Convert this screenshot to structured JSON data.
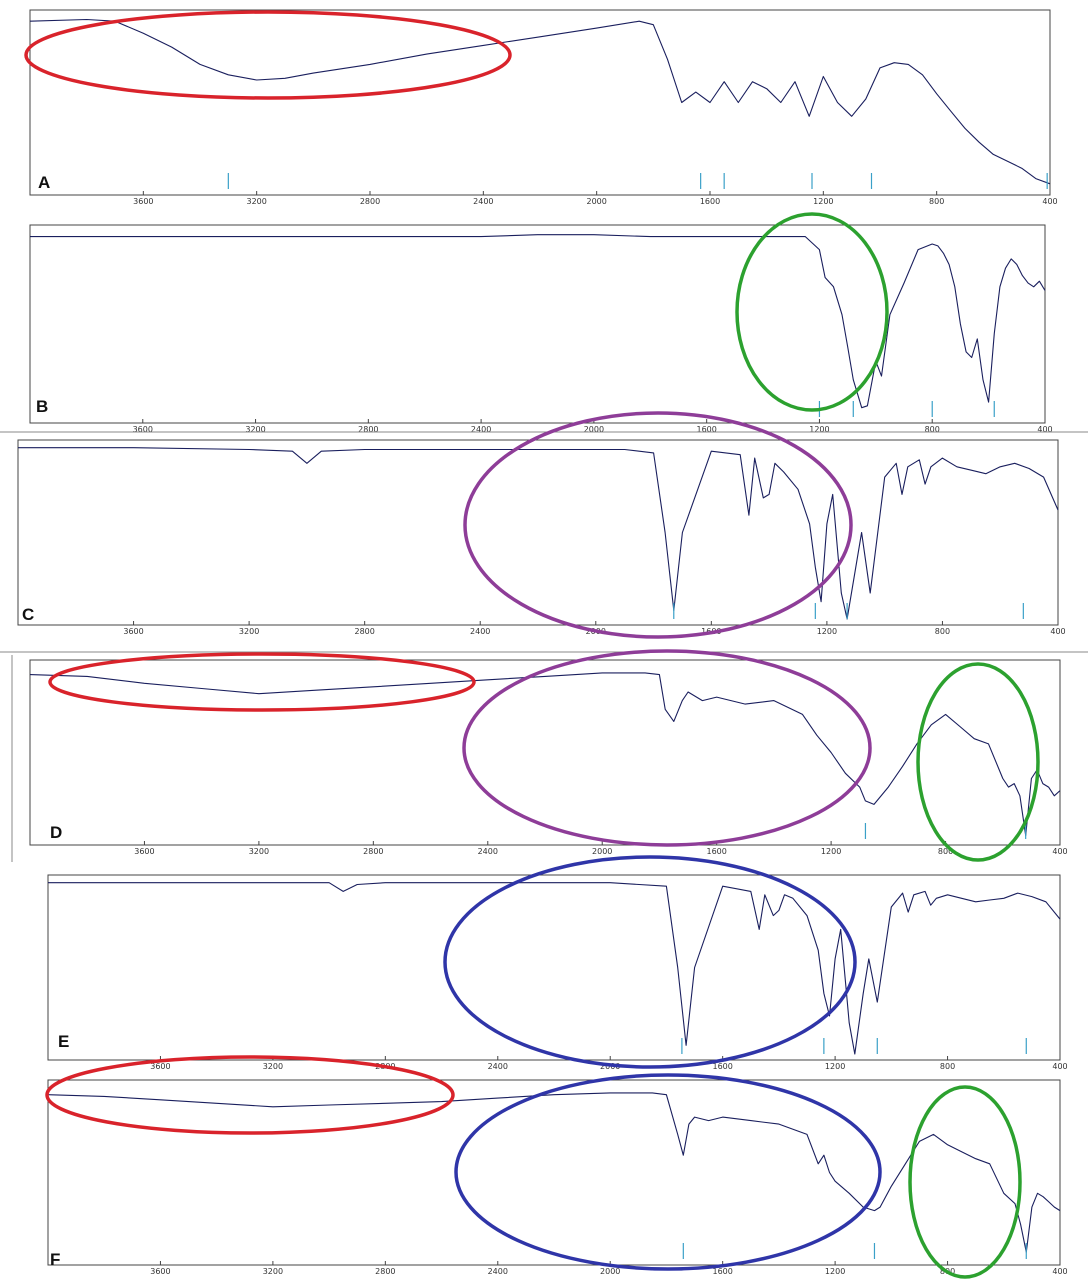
{
  "figure": {
    "panel_letters": [
      "A",
      "B",
      "C",
      "D",
      "E",
      "F"
    ],
    "highlight_colors": {
      "red": "#d9232b",
      "green": "#2ca12f",
      "purple": "#8e3d98",
      "blue": "#2f35a8"
    },
    "spectrum_color": "#1a1f5e"
  },
  "chart_data": [
    {
      "type": "line",
      "panel": "A",
      "xlabel": "",
      "ylabel": "",
      "xlim": [
        4000,
        400
      ],
      "x_reversed": true,
      "x_ticks": [
        3600,
        3200,
        2800,
        2400,
        2000,
        1600,
        1200,
        800,
        400
      ],
      "x": [
        4000,
        3800,
        3700,
        3600,
        3500,
        3400,
        3300,
        3200,
        3100,
        3000,
        2800,
        2600,
        2400,
        2200,
        2000,
        1850,
        1800,
        1750,
        1700,
        1650,
        1600,
        1550,
        1500,
        1450,
        1400,
        1350,
        1300,
        1250,
        1200,
        1150,
        1100,
        1050,
        1000,
        950,
        900,
        850,
        800,
        750,
        700,
        650,
        600,
        550,
        500,
        450,
        400
      ],
      "y": [
        0.97,
        0.98,
        0.97,
        0.9,
        0.82,
        0.72,
        0.66,
        0.63,
        0.64,
        0.67,
        0.72,
        0.78,
        0.83,
        0.88,
        0.93,
        0.97,
        0.95,
        0.75,
        0.5,
        0.56,
        0.5,
        0.62,
        0.5,
        0.62,
        0.58,
        0.5,
        0.62,
        0.42,
        0.65,
        0.5,
        0.42,
        0.52,
        0.7,
        0.73,
        0.72,
        0.66,
        0.55,
        0.45,
        0.35,
        0.27,
        0.2,
        0.16,
        0.12,
        0.06,
        0.03
      ],
      "peak_markers": [
        3300,
        1633,
        1550,
        1240,
        1030,
        410
      ]
    },
    {
      "type": "line",
      "panel": "B",
      "xlabel": "",
      "ylabel": "",
      "xlim": [
        4000,
        400
      ],
      "x_reversed": true,
      "x_ticks": [
        3600,
        3200,
        2800,
        2400,
        2000,
        1600,
        1200,
        800,
        400
      ],
      "x": [
        4000,
        3600,
        3200,
        2800,
        2400,
        2200,
        2000,
        1800,
        1600,
        1400,
        1250,
        1200,
        1180,
        1150,
        1120,
        1100,
        1080,
        1050,
        1030,
        1000,
        980,
        950,
        900,
        850,
        800,
        780,
        760,
        740,
        720,
        700,
        680,
        660,
        640,
        620,
        600,
        580,
        560,
        540,
        520,
        500,
        480,
        460,
        440,
        420,
        400
      ],
      "y": [
        0.97,
        0.97,
        0.97,
        0.97,
        0.97,
        0.98,
        0.98,
        0.97,
        0.97,
        0.97,
        0.97,
        0.9,
        0.75,
        0.7,
        0.55,
        0.38,
        0.2,
        0.05,
        0.06,
        0.3,
        0.22,
        0.55,
        0.72,
        0.9,
        0.93,
        0.92,
        0.88,
        0.82,
        0.7,
        0.5,
        0.35,
        0.32,
        0.42,
        0.2,
        0.08,
        0.45,
        0.7,
        0.8,
        0.85,
        0.82,
        0.76,
        0.72,
        0.7,
        0.73,
        0.68
      ],
      "peak_markers": [
        1200,
        1080,
        800,
        580
      ]
    },
    {
      "type": "line",
      "panel": "C",
      "xlabel": "",
      "ylabel": "",
      "xlim": [
        4000,
        400
      ],
      "x_reversed": true,
      "x_ticks": [
        3600,
        3200,
        2800,
        2400,
        2000,
        1600,
        1200,
        800,
        400
      ],
      "x": [
        4000,
        3600,
        3200,
        3050,
        3000,
        2950,
        2800,
        2400,
        2000,
        1900,
        1800,
        1760,
        1730,
        1700,
        1600,
        1500,
        1470,
        1450,
        1420,
        1400,
        1380,
        1350,
        1300,
        1260,
        1240,
        1220,
        1200,
        1180,
        1150,
        1130,
        1100,
        1080,
        1050,
        1000,
        960,
        940,
        920,
        880,
        860,
        840,
        800,
        750,
        700,
        650,
        600,
        550,
        500,
        450,
        400
      ],
      "y": [
        0.99,
        0.99,
        0.98,
        0.97,
        0.9,
        0.97,
        0.98,
        0.98,
        0.98,
        0.98,
        0.96,
        0.5,
        0.05,
        0.5,
        0.97,
        0.95,
        0.6,
        0.93,
        0.7,
        0.72,
        0.9,
        0.85,
        0.75,
        0.55,
        0.3,
        0.1,
        0.55,
        0.72,
        0.15,
        0.0,
        0.3,
        0.5,
        0.15,
        0.82,
        0.9,
        0.72,
        0.88,
        0.92,
        0.78,
        0.88,
        0.93,
        0.88,
        0.86,
        0.84,
        0.88,
        0.9,
        0.87,
        0.82,
        0.63
      ],
      "peak_markers": [
        1730,
        1240,
        1130,
        520
      ]
    },
    {
      "type": "line",
      "panel": "D",
      "xlabel": "",
      "ylabel": "",
      "xlim": [
        4000,
        400
      ],
      "x_reversed": true,
      "x_ticks": [
        3600,
        3200,
        2800,
        2400,
        2000,
        1600,
        1200,
        800,
        400
      ],
      "x": [
        4000,
        3800,
        3600,
        3400,
        3200,
        3000,
        2800,
        2600,
        2400,
        2200,
        2000,
        1850,
        1800,
        1780,
        1750,
        1720,
        1700,
        1650,
        1600,
        1500,
        1400,
        1300,
        1250,
        1200,
        1150,
        1100,
        1080,
        1050,
        1000,
        950,
        900,
        850,
        800,
        750,
        700,
        650,
        600,
        580,
        560,
        540,
        520,
        500,
        480,
        460,
        440,
        420,
        400
      ],
      "y": [
        0.95,
        0.94,
        0.9,
        0.87,
        0.84,
        0.86,
        0.88,
        0.9,
        0.92,
        0.94,
        0.96,
        0.96,
        0.95,
        0.75,
        0.68,
        0.8,
        0.85,
        0.8,
        0.82,
        0.78,
        0.8,
        0.72,
        0.6,
        0.5,
        0.38,
        0.3,
        0.22,
        0.2,
        0.3,
        0.42,
        0.55,
        0.66,
        0.72,
        0.65,
        0.58,
        0.55,
        0.35,
        0.3,
        0.32,
        0.25,
        0.02,
        0.35,
        0.4,
        0.32,
        0.3,
        0.25,
        0.28
      ],
      "peak_markers": [
        1080,
        520
      ]
    },
    {
      "type": "line",
      "panel": "E",
      "xlabel": "",
      "ylabel": "",
      "xlim": [
        4000,
        400
      ],
      "x_reversed": true,
      "x_ticks": [
        3600,
        3200,
        2800,
        2400,
        2000,
        1600,
        1200,
        800,
        400
      ],
      "x": [
        4000,
        3600,
        3200,
        3000,
        2950,
        2900,
        2800,
        2400,
        2000,
        1800,
        1760,
        1730,
        1700,
        1600,
        1500,
        1470,
        1450,
        1420,
        1400,
        1380,
        1350,
        1300,
        1260,
        1240,
        1220,
        1200,
        1180,
        1150,
        1130,
        1100,
        1080,
        1050,
        1000,
        960,
        940,
        920,
        880,
        860,
        840,
        800,
        750,
        700,
        650,
        600,
        550,
        500,
        450,
        400
      ],
      "y": [
        0.99,
        0.99,
        0.99,
        0.99,
        0.94,
        0.98,
        0.99,
        0.99,
        0.99,
        0.97,
        0.5,
        0.05,
        0.5,
        0.97,
        0.94,
        0.72,
        0.92,
        0.8,
        0.83,
        0.92,
        0.9,
        0.8,
        0.6,
        0.35,
        0.22,
        0.55,
        0.72,
        0.18,
        0.0,
        0.35,
        0.55,
        0.3,
        0.85,
        0.93,
        0.82,
        0.92,
        0.94,
        0.86,
        0.9,
        0.92,
        0.9,
        0.88,
        0.89,
        0.9,
        0.93,
        0.91,
        0.88,
        0.78
      ],
      "peak_markers": [
        1745,
        1240,
        1050,
        520
      ]
    },
    {
      "type": "line",
      "panel": "F",
      "xlabel": "",
      "ylabel": "",
      "xlim": [
        4000,
        400
      ],
      "x_reversed": true,
      "x_ticks": [
        3600,
        3200,
        2800,
        2400,
        2000,
        1600,
        1200,
        800,
        400
      ],
      "x": [
        4000,
        3800,
        3600,
        3400,
        3200,
        3000,
        2800,
        2600,
        2400,
        2200,
        2000,
        1850,
        1800,
        1760,
        1740,
        1720,
        1700,
        1650,
        1600,
        1500,
        1400,
        1300,
        1260,
        1240,
        1220,
        1200,
        1150,
        1100,
        1060,
        1040,
        1000,
        950,
        900,
        850,
        800,
        750,
        700,
        650,
        600,
        560,
        540,
        520,
        500,
        480,
        460,
        440,
        420,
        400
      ],
      "y": [
        0.95,
        0.94,
        0.92,
        0.9,
        0.88,
        0.89,
        0.9,
        0.91,
        0.93,
        0.95,
        0.96,
        0.96,
        0.95,
        0.72,
        0.6,
        0.78,
        0.82,
        0.8,
        0.82,
        0.8,
        0.78,
        0.72,
        0.55,
        0.6,
        0.5,
        0.45,
        0.38,
        0.3,
        0.28,
        0.3,
        0.42,
        0.55,
        0.68,
        0.72,
        0.66,
        0.62,
        0.58,
        0.55,
        0.38,
        0.32,
        0.2,
        0.04,
        0.3,
        0.38,
        0.36,
        0.33,
        0.3,
        0.28
      ],
      "peak_markers": [
        1740,
        1060,
        520
      ]
    }
  ]
}
